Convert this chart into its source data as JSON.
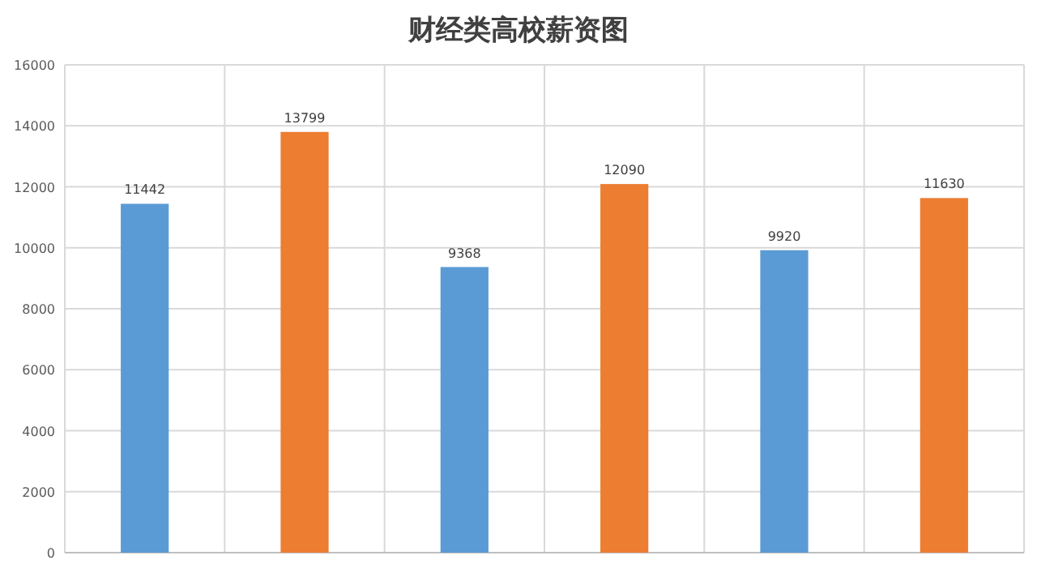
{
  "chart_data": {
    "type": "bar",
    "title": "财经类高校薪资图",
    "categories": [
      null,
      null,
      null,
      null,
      null,
      null
    ],
    "values": [
      11442,
      13799,
      9368,
      12090,
      9920,
      11630
    ],
    "colors": [
      "#5b9bd5",
      "#ed7d31",
      "#5b9bd5",
      "#ed7d31",
      "#5b9bd5",
      "#ed7d31"
    ],
    "ylim": [
      0,
      16000
    ],
    "yticks": [
      0,
      2000,
      4000,
      6000,
      8000,
      10000,
      12000,
      14000,
      16000
    ],
    "grid": true,
    "data_labels": true
  }
}
